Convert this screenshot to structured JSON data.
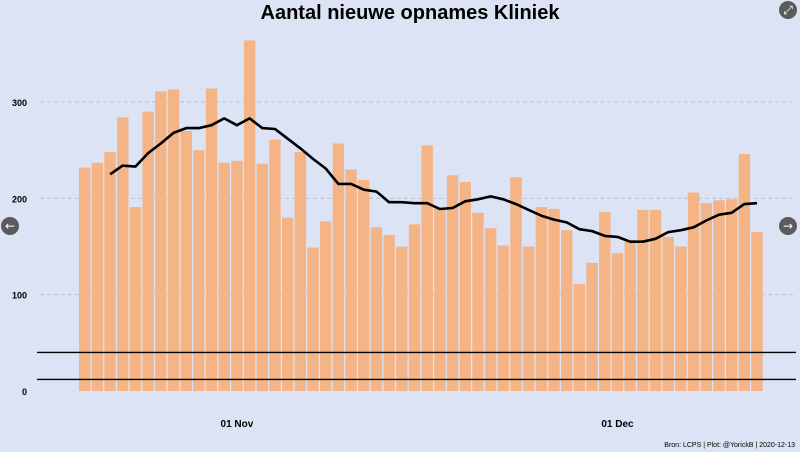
{
  "chart_data": {
    "type": "bar",
    "title": "Aantal nieuwe opnames Kliniek",
    "source": "Bron: LCPS | Plot: @YorickB | 2020-12-13",
    "xlabel": "",
    "ylabel": "",
    "ylim": [
      0,
      380
    ],
    "yticks": [
      0,
      100,
      200,
      300
    ],
    "x_ticks": [
      {
        "index": 12,
        "label": "01 Nov"
      },
      {
        "index": 42,
        "label": "01 Dec"
      }
    ],
    "grid": "horizontal dashed",
    "bar_color": "#f4b486",
    "line_color": "#000000",
    "reference_lines": [
      40,
      12
    ],
    "bars": {
      "name": "",
      "values": [
        232,
        237,
        248,
        284,
        191,
        290,
        311,
        313,
        270,
        250,
        314,
        237,
        239,
        364,
        236,
        261,
        180,
        248,
        149,
        176,
        257,
        230,
        219,
        170,
        162,
        150,
        173,
        255,
        190,
        224,
        217,
        185,
        169,
        151,
        222,
        150,
        191,
        189,
        167,
        111,
        133,
        186,
        143,
        157,
        188,
        188,
        160,
        150,
        206,
        195,
        198,
        199,
        246,
        165
      ]
    },
    "rolling_avg": {
      "name": "",
      "values": [
        null,
        null,
        225,
        234,
        233,
        247,
        257,
        268,
        273,
        273,
        276,
        283,
        276,
        283,
        273,
        272,
        262,
        252,
        241,
        231,
        215,
        215,
        209,
        207,
        196,
        196,
        195,
        195,
        189,
        190,
        197,
        199,
        202,
        199,
        194,
        188,
        182,
        178,
        175,
        168,
        166,
        161,
        160,
        155,
        155,
        158,
        165,
        167,
        170,
        177,
        183,
        185,
        194,
        195
      ]
    }
  },
  "controls": {
    "expand_icon": "⤢",
    "prev_icon": "←",
    "next_icon": "→"
  }
}
